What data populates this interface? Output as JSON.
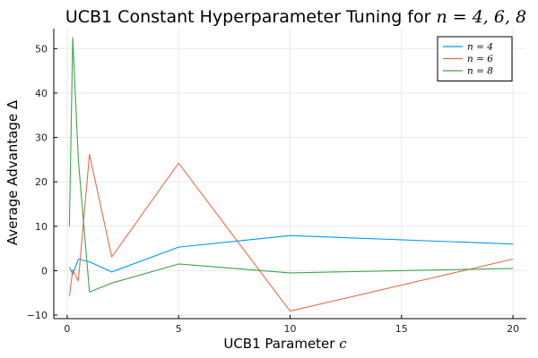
{
  "chart_data": {
    "type": "line",
    "title_prefix": "UCB1 Constant Hyperparameter Tuning for ",
    "title_math": "n = 4, 6, 8",
    "xlabel_prefix": "UCB1 Parameter ",
    "xlabel_math": "c",
    "ylabel": "Average Advantage Δ",
    "xlim": [
      -0.6,
      20.6
    ],
    "ylim": [
      -10.8,
      54.5
    ],
    "xticks": [
      0,
      5,
      10,
      15,
      20
    ],
    "xtick_labels": [
      "0",
      "5",
      "10",
      "15",
      "20"
    ],
    "yticks": [
      -10,
      0,
      10,
      20,
      30,
      40,
      50
    ],
    "ytick_labels": [
      "−10",
      "0",
      "10",
      "20",
      "30",
      "40",
      "50"
    ],
    "grid": true,
    "legend_position": "top-right",
    "series": [
      {
        "name": "n = 4",
        "color": "#009AFA",
        "x": [
          0.1,
          0.25,
          0.5,
          1,
          2,
          5,
          10,
          20
        ],
        "y": [
          0.8,
          -0.8,
          2.6,
          2.0,
          -0.3,
          5.3,
          7.9,
          6.0
        ]
      },
      {
        "name": "n = 6",
        "color": "#E26F46",
        "x": [
          0.1,
          0.25,
          0.5,
          1,
          2,
          5,
          10,
          20
        ],
        "y": [
          -5.8,
          0.2,
          -2.3,
          26.2,
          3.1,
          24.2,
          -9.1,
          2.6
        ]
      },
      {
        "name": "n = 8",
        "color": "#3DA44D",
        "x": [
          0.1,
          0.25,
          0.5,
          1,
          2,
          5,
          10,
          20
        ],
        "y": [
          10.0,
          52.5,
          25.0,
          -4.8,
          -2.8,
          1.5,
          -0.5,
          0.5
        ]
      }
    ]
  }
}
